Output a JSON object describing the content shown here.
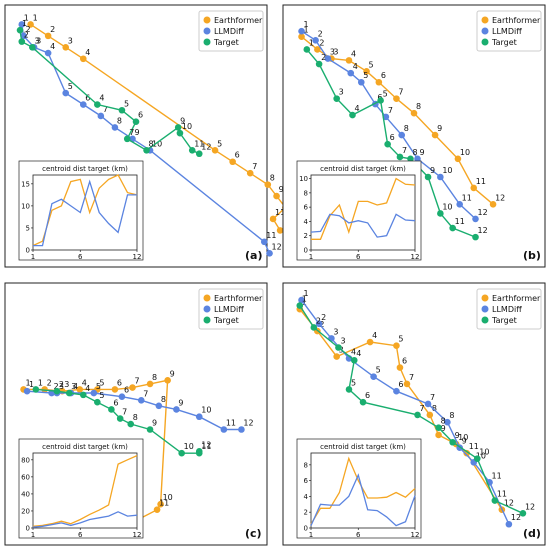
{
  "figure": {
    "colors": {
      "Earthformer": "#f5a623",
      "LLMDiff": "#5b84e0",
      "Target": "#1aae6f"
    }
  },
  "chart_data": [
    {
      "type": "scatter",
      "label": "(a)",
      "legend": {
        "placement": "top-right",
        "entries": [
          "Earthformer",
          "LLMDiff",
          "Target"
        ]
      },
      "series": [
        {
          "name": "Earthformer",
          "points": [
            [
              1,
              1,
              1
            ],
            [
              2,
              2,
              2
            ],
            [
              3,
              3,
              3
            ],
            [
              4,
              4,
              4
            ],
            [
              5,
              11.5,
              12
            ],
            [
              6,
              12.5,
              13
            ],
            [
              7,
              13.5,
              14
            ],
            [
              8,
              14.5,
              15
            ],
            [
              9,
              15,
              16
            ],
            [
              10,
              15.5,
              17
            ],
            [
              11,
              14.8,
              18
            ],
            [
              12,
              15.2,
              19
            ]
          ]
        },
        {
          "name": "LLMDiff",
          "points": [
            [
              1,
              0.5,
              1
            ],
            [
              2,
              0.6,
              2
            ],
            [
              3,
              1.2,
              3
            ],
            [
              4,
              2,
              3.5
            ],
            [
              5,
              3,
              7
            ],
            [
              6,
              4,
              8
            ],
            [
              7,
              5,
              9
            ],
            [
              8,
              5.8,
              10
            ],
            [
              9,
              6.8,
              11
            ],
            [
              10,
              7.8,
              12
            ],
            [
              11,
              14.3,
              20
            ],
            [
              12,
              14.6,
              21
            ]
          ]
        },
        {
          "name": "Target",
          "points": [
            [
              1,
              0.4,
              1.5
            ],
            [
              2,
              0.5,
              2.5
            ],
            [
              3,
              1.1,
              3
            ],
            [
              4,
              4.8,
              8
            ],
            [
              5,
              6.2,
              8.5
            ],
            [
              6,
              7,
              9.5
            ],
            [
              7,
              6.5,
              11
            ],
            [
              8,
              7.6,
              12
            ],
            [
              9,
              9.4,
              10
            ],
            [
              10,
              9.5,
              10.5
            ],
            [
              11,
              10.2,
              12
            ],
            [
              12,
              10.6,
              12.3
            ]
          ]
        }
      ],
      "inset": {
        "title": "centroid dist target (km)",
        "x": [
          1,
          2,
          3,
          4,
          5,
          6,
          7,
          8,
          9,
          10,
          11,
          12
        ],
        "xticks": [
          1,
          6,
          12
        ],
        "ylim": [
          0,
          17
        ],
        "yticks": [
          0,
          5,
          10,
          15
        ],
        "series": [
          {
            "name": "Earthformer",
            "values": [
              1,
              2,
              9,
              10,
              15.5,
              16,
              8.5,
              14,
              16,
              17,
              13,
              12.5
            ]
          },
          {
            "name": "LLMDiff",
            "values": [
              1,
              1,
              10.5,
              11.5,
              10,
              8.5,
              15.5,
              8.5,
              6,
              4,
              12.5,
              12.5
            ]
          }
        ]
      }
    },
    {
      "type": "scatter",
      "label": "(b)",
      "legend": {
        "placement": "top-right",
        "entries": [
          "Earthformer",
          "LLMDiff",
          "Target"
        ]
      },
      "series": [
        {
          "name": "Earthformer",
          "points": [
            [
              1,
              0.6,
              1.3
            ],
            [
              2,
              1.5,
              2
            ],
            [
              3,
              2.3,
              2.5
            ],
            [
              4,
              3.3,
              2.6
            ],
            [
              5,
              4.3,
              3.2
            ],
            [
              6,
              5,
              3.8
            ],
            [
              7,
              6,
              4.7
            ],
            [
              8,
              7,
              5.5
            ],
            [
              9,
              8.2,
              6.7
            ],
            [
              10,
              9.5,
              8
            ],
            [
              11,
              10.4,
              9.6
            ],
            [
              12,
              11.5,
              10.5
            ]
          ]
        },
        {
          "name": "LLMDiff",
          "points": [
            [
              1,
              0.6,
              1
            ],
            [
              2,
              1.4,
              1.5
            ],
            [
              3,
              2.1,
              2.5
            ],
            [
              4,
              3.4,
              3.3
            ],
            [
              5,
              4,
              3.8
            ],
            [
              6,
              4.8,
              5
            ],
            [
              7,
              5.4,
              5.7
            ],
            [
              8,
              6.3,
              6.7
            ],
            [
              9,
              7.2,
              8
            ],
            [
              10,
              8.5,
              9
            ],
            [
              11,
              9.6,
              10.5
            ],
            [
              12,
              10.5,
              11.3
            ]
          ]
        },
        {
          "name": "Target",
          "points": [
            [
              1,
              0.9,
              2
            ],
            [
              2,
              1.6,
              2.8
            ],
            [
              3,
              2.6,
              4.7
            ],
            [
              4,
              3.5,
              5.6
            ],
            [
              5,
              5.1,
              4.8
            ],
            [
              6,
              5.5,
              7.2
            ],
            [
              7,
              6.2,
              7.9
            ],
            [
              8,
              6.8,
              8
            ],
            [
              9,
              7.8,
              9
            ],
            [
              10,
              8.5,
              11
            ],
            [
              11,
              9.2,
              11.8
            ],
            [
              12,
              10.5,
              12.3
            ]
          ]
        }
      ],
      "inset": {
        "title": "centroid dist target (km)",
        "x": [
          1,
          2,
          3,
          4,
          5,
          6,
          7,
          8,
          9,
          10,
          11,
          12
        ],
        "xticks": [
          1,
          6,
          12
        ],
        "ylim": [
          0,
          10.5
        ],
        "yticks": [
          0,
          2,
          4,
          6,
          8,
          10
        ],
        "series": [
          {
            "name": "Earthformer",
            "values": [
              1.5,
              1.5,
              4.8,
              6.3,
              2.5,
              6.8,
              6.8,
              6.3,
              6.6,
              10,
              9.2,
              9.1
            ]
          },
          {
            "name": "LLMDiff",
            "values": [
              2.5,
              2.6,
              5,
              4.8,
              3.8,
              4.1,
              3.8,
              1.8,
              2,
              5,
              4.2,
              4.1
            ]
          }
        ]
      }
    },
    {
      "type": "scatter",
      "label": "(c)",
      "legend": {
        "placement": "top-right",
        "entries": [
          "Earthformer",
          "LLMDiff",
          "Target"
        ]
      },
      "series": [
        {
          "name": "Earthformer",
          "points": [
            [
              1,
              0.6,
              5.4
            ],
            [
              2,
              1.8,
              5.4
            ],
            [
              3,
              2.8,
              5.5
            ],
            [
              4,
              3.8,
              5.4
            ],
            [
              5,
              4.8,
              5.4
            ],
            [
              6,
              5.8,
              5.4
            ],
            [
              7,
              6.8,
              5.3
            ],
            [
              8,
              7.8,
              5.1
            ],
            [
              9,
              8.8,
              4.9
            ],
            [
              10,
              8.4,
              11.7
            ],
            [
              11,
              8.2,
              12
            ],
            [
              12,
              6.6,
              12.8
            ]
          ]
        },
        {
          "name": "LLMDiff",
          "points": [
            [
              1,
              0.8,
              5.5
            ],
            [
              2,
              2.2,
              5.6
            ],
            [
              3,
              2.5,
              5.6
            ],
            [
              4,
              3.3,
              5.6
            ],
            [
              5,
              4.6,
              5.6
            ],
            [
              6,
              6.2,
              5.8
            ],
            [
              7,
              7.3,
              6
            ],
            [
              8,
              8.3,
              6.3
            ],
            [
              9,
              9.3,
              6.5
            ],
            [
              10,
              10.6,
              6.9
            ],
            [
              11,
              12,
              7.6
            ],
            [
              12,
              13,
              7.6
            ]
          ]
        },
        {
          "name": "Target",
          "points": [
            [
              1,
              1.3,
              5.4
            ],
            [
              2,
              2.5,
              5.5
            ],
            [
              3,
              3.2,
              5.6
            ],
            [
              4,
              4,
              5.7
            ],
            [
              5,
              4.8,
              6.1
            ],
            [
              6,
              5.6,
              6.5
            ],
            [
              7,
              6.1,
              7
            ],
            [
              8,
              6.7,
              7.3
            ],
            [
              9,
              7.8,
              7.6
            ],
            [
              10,
              9.6,
              8.9
            ],
            [
              11,
              10.6,
              8.9
            ],
            [
              12,
              10.6,
              8.8
            ]
          ]
        }
      ],
      "inset": {
        "title": "centroid dist target (km)",
        "x": [
          1,
          2,
          3,
          4,
          5,
          6,
          7,
          8,
          9,
          10,
          11,
          12
        ],
        "xticks": [
          1,
          6,
          12
        ],
        "ylim": [
          0,
          88
        ],
        "yticks": [
          0,
          20,
          40,
          60,
          80
        ],
        "series": [
          {
            "name": "Earthformer",
            "values": [
              2,
              3,
              5,
              8,
              5,
              10,
              16,
              21,
              27,
              75,
              80,
              85
            ]
          },
          {
            "name": "LLMDiff",
            "values": [
              1,
              2,
              4,
              6,
              3,
              6,
              10,
              12,
              14,
              19,
              14,
              15
            ]
          }
        ]
      }
    },
    {
      "type": "scatter",
      "label": "(d)",
      "legend": {
        "placement": "top-right",
        "entries": [
          "Earthformer",
          "LLMDiff",
          "Target"
        ]
      },
      "series": [
        {
          "name": "Earthformer",
          "points": [
            [
              1,
              0.5,
              1
            ],
            [
              2,
              1.5,
              2.2
            ],
            [
              3,
              2.6,
              3.6
            ],
            [
              4,
              4.5,
              2.8
            ],
            [
              5,
              6,
              3
            ],
            [
              6,
              6.2,
              4.2
            ],
            [
              7,
              6.6,
              5.1
            ],
            [
              8,
              7.9,
              6.8
            ],
            [
              9,
              8.4,
              7.9
            ],
            [
              10,
              9.4,
              8.4
            ],
            [
              11,
              10,
              8.9
            ],
            [
              12,
              12,
              12
            ]
          ]
        },
        {
          "name": "LLMDiff",
          "points": [
            [
              1,
              0.6,
              0.5
            ],
            [
              2,
              1.6,
              1.8
            ],
            [
              3,
              2.3,
              2.6
            ],
            [
              4,
              3.3,
              3.7
            ],
            [
              5,
              4.7,
              4.7
            ],
            [
              6,
              6,
              5.5
            ],
            [
              7,
              7.8,
              6.2
            ],
            [
              8,
              8.9,
              7.2
            ],
            [
              9,
              9.6,
              8.6
            ],
            [
              10,
              10.4,
              9.4
            ],
            [
              11,
              11.3,
              10.5
            ],
            [
              12,
              12.4,
              12.8
            ]
          ]
        },
        {
          "name": "Target",
          "points": [
            [
              1,
              0.5,
              0.8
            ],
            [
              2,
              1.3,
              2
            ],
            [
              3,
              2.7,
              3.1
            ],
            [
              4,
              3.6,
              3.8
            ],
            [
              5,
              3.3,
              5.4
            ],
            [
              6,
              4.1,
              6.1
            ],
            [
              7,
              7.2,
              6.8
            ],
            [
              8,
              8.4,
              7.5
            ],
            [
              9,
              9.2,
              8.3
            ],
            [
              10,
              10.6,
              9.2
            ],
            [
              11,
              11.6,
              11.5
            ],
            [
              12,
              13.2,
              12.2
            ]
          ]
        }
      ],
      "inset": {
        "title": "centroid dist target (km)",
        "x": [
          1,
          2,
          3,
          4,
          5,
          6,
          7,
          8,
          9,
          10,
          11,
          12
        ],
        "xticks": [
          1,
          6,
          12
        ],
        "ylim": [
          0,
          9.5
        ],
        "yticks": [
          0,
          2,
          4,
          6,
          8
        ],
        "series": [
          {
            "name": "Earthformer",
            "values": [
              0.5,
              2.5,
              2.5,
              4.5,
              8.8,
              6,
              3.8,
              3.8,
              3.9,
              4.5,
              3.9,
              5
            ]
          },
          {
            "name": "LLMDiff",
            "values": [
              0.3,
              3,
              2.9,
              2.9,
              4,
              6.7,
              2.3,
              2.2,
              1.4,
              0.3,
              0.8,
              4.1
            ]
          }
        ]
      }
    }
  ]
}
